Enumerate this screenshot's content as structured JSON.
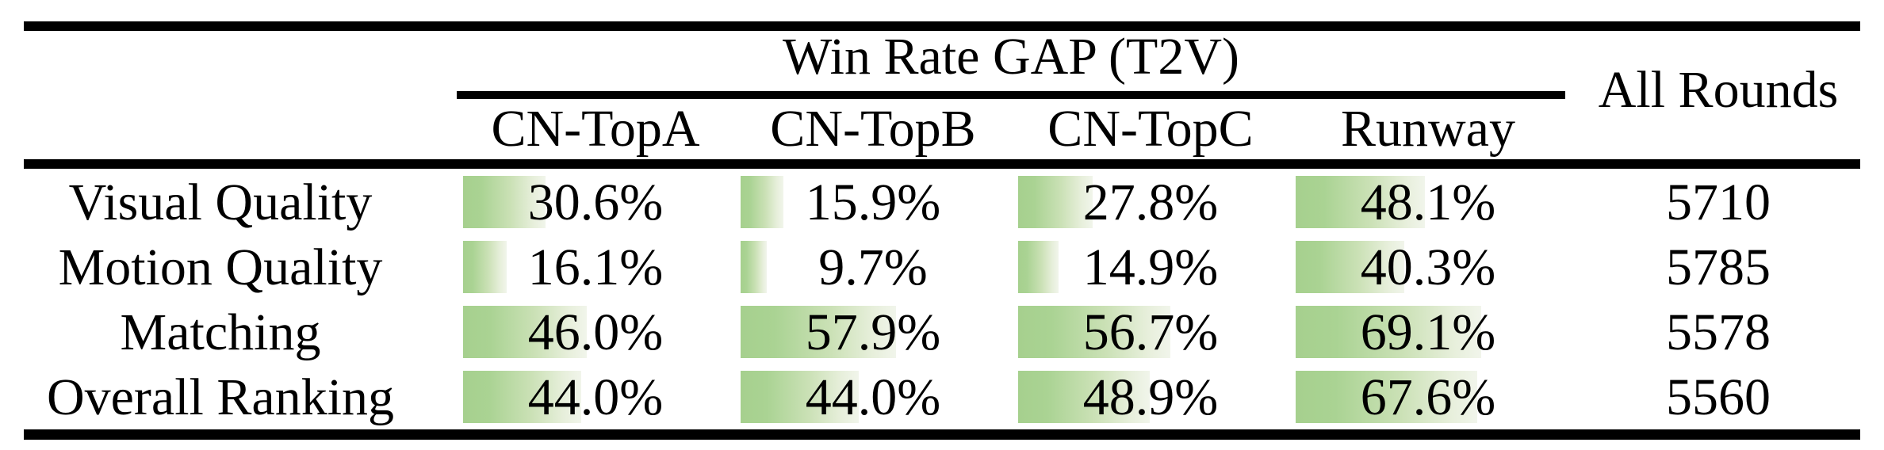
{
  "table": {
    "group_header": "Win Rate GAP (T2V)",
    "all_rounds_header": "All Rounds",
    "columns": [
      "CN-TopA",
      "CN-TopB",
      "CN-TopC",
      "Runway"
    ],
    "rows": [
      {
        "label": "Visual Quality",
        "cells": [
          {
            "pct": 30.6,
            "text": "30.6%"
          },
          {
            "pct": 15.9,
            "text": "15.9%"
          },
          {
            "pct": 27.8,
            "text": "27.8%"
          },
          {
            "pct": 48.1,
            "text": "48.1%"
          }
        ],
        "all_rounds": "5710"
      },
      {
        "label": "Motion Quality",
        "cells": [
          {
            "pct": 16.1,
            "text": "16.1%"
          },
          {
            "pct": 9.7,
            "text": "9.7%"
          },
          {
            "pct": 14.9,
            "text": "14.9%"
          },
          {
            "pct": 40.3,
            "text": "40.3%"
          }
        ],
        "all_rounds": "5785"
      },
      {
        "label": "Matching",
        "cells": [
          {
            "pct": 46.0,
            "text": "46.0%"
          },
          {
            "pct": 57.9,
            "text": "57.9%"
          },
          {
            "pct": 56.7,
            "text": "56.7%"
          },
          {
            "pct": 69.1,
            "text": "69.1%"
          }
        ],
        "all_rounds": "5578"
      },
      {
        "label": "Overall Ranking",
        "cells": [
          {
            "pct": 44.0,
            "text": "44.0%"
          },
          {
            "pct": 44.0,
            "text": "44.0%"
          },
          {
            "pct": 48.9,
            "text": "48.9%"
          },
          {
            "pct": 67.6,
            "text": "67.6%"
          }
        ],
        "all_rounds": "5560"
      }
    ],
    "bar_color_left": "#a6d08e",
    "bar_color_right": "#f1f5eb",
    "rule_color": "#000000"
  },
  "chart_data": {
    "type": "table",
    "title": "Win Rate GAP (T2V)",
    "columns": [
      "CN-TopA",
      "CN-TopB",
      "CN-TopC",
      "Runway",
      "All Rounds"
    ],
    "rows": [
      {
        "label": "Visual Quality",
        "win_rate_gap_pct": [
          30.6,
          15.9,
          27.8,
          48.1
        ],
        "all_rounds": 5710
      },
      {
        "label": "Motion Quality",
        "win_rate_gap_pct": [
          16.1,
          9.7,
          14.9,
          40.3
        ],
        "all_rounds": 5785
      },
      {
        "label": "Matching",
        "win_rate_gap_pct": [
          46.0,
          57.9,
          56.7,
          69.1
        ],
        "all_rounds": 5578
      },
      {
        "label": "Overall Ranking",
        "win_rate_gap_pct": [
          44.0,
          44.0,
          48.9,
          67.6
        ],
        "all_rounds": 5560
      }
    ],
    "notes": "Green data bars drawn behind percentages; bar length proportional to value (100% = full column width)"
  }
}
